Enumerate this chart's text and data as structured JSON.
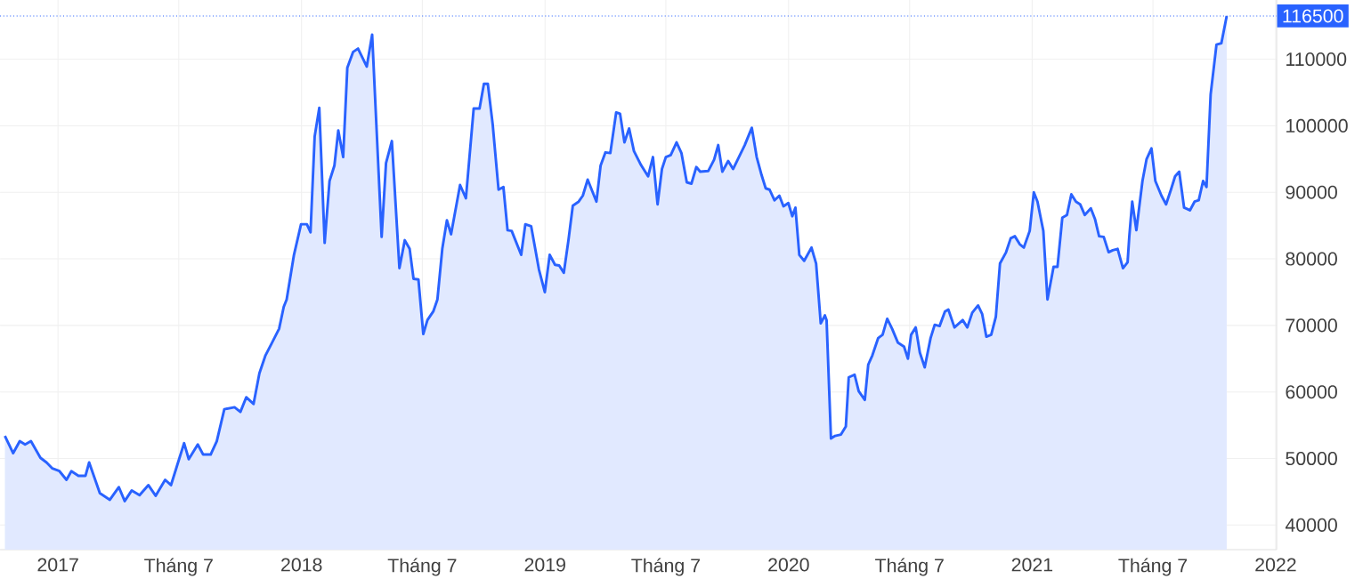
{
  "chart_data": {
    "type": "area",
    "color": "#2962ff",
    "grid": true,
    "xlim": [
      2016.762,
      2022.004
    ],
    "ylim": [
      36300,
      118900
    ],
    "xticks": [
      {
        "value": 2017,
        "label": "2017"
      },
      {
        "value": 2017.496,
        "label": "Tháng 7"
      },
      {
        "value": 2018,
        "label": "2018"
      },
      {
        "value": 2018.496,
        "label": "Tháng 7"
      },
      {
        "value": 2019,
        "label": "2019"
      },
      {
        "value": 2019.496,
        "label": "Tháng 7"
      },
      {
        "value": 2020,
        "label": "2020"
      },
      {
        "value": 2020.497,
        "label": "Tháng 7"
      },
      {
        "value": 2021,
        "label": "2021"
      },
      {
        "value": 2021.496,
        "label": "Tháng 7"
      },
      {
        "value": 2022,
        "label": "2022"
      }
    ],
    "yticks": [
      40000,
      50000,
      60000,
      70000,
      80000,
      90000,
      100000,
      110000
    ],
    "ref_lines": [
      {
        "axis": "y",
        "value": 116500,
        "label": "116500",
        "line_style": "dotted",
        "color": "#2962ff"
      }
    ],
    "x": [
      2016.782,
      2016.816,
      2016.843,
      2016.865,
      2016.889,
      2016.928,
      2016.953,
      2016.977,
      2017.006,
      2017.035,
      2017.055,
      2017.084,
      2017.113,
      2017.128,
      2017.172,
      2017.213,
      2017.25,
      2017.274,
      2017.303,
      2017.335,
      2017.371,
      2017.401,
      2017.44,
      2017.464,
      2017.499,
      2017.518,
      2017.537,
      2017.574,
      2017.596,
      2017.627,
      2017.652,
      2017.683,
      2017.725,
      2017.749,
      2017.773,
      2017.803,
      2017.827,
      2017.852,
      2017.876,
      2017.908,
      2017.927,
      2017.939,
      2017.969,
      2017.998,
      2018.022,
      2018.037,
      2018.054,
      2018.073,
      2018.095,
      2018.115,
      2018.135,
      2018.151,
      2018.171,
      2018.188,
      2018.212,
      2018.232,
      2018.268,
      2018.29,
      2018.329,
      2018.347,
      2018.371,
      2018.402,
      2018.424,
      2018.444,
      2018.46,
      2018.48,
      2018.5,
      2018.517,
      2018.541,
      2018.558,
      2018.578,
      2018.597,
      2018.614,
      2018.634,
      2018.651,
      2018.675,
      2018.707,
      2018.731,
      2018.749,
      2018.765,
      2018.785,
      2018.809,
      2018.829,
      2018.846,
      2018.863,
      2018.902,
      2018.919,
      2018.943,
      2018.975,
      2018.999,
      2019.019,
      2019.041,
      2019.058,
      2019.077,
      2019.096,
      2019.114,
      2019.138,
      2019.155,
      2019.175,
      2019.211,
      2019.228,
      2019.248,
      2019.268,
      2019.292,
      2019.308,
      2019.326,
      2019.345,
      2019.365,
      2019.394,
      2019.423,
      2019.443,
      2019.462,
      2019.48,
      2019.496,
      2019.516,
      2019.54,
      2019.56,
      2019.582,
      2019.601,
      2019.621,
      2019.637,
      2019.67,
      2019.694,
      2019.711,
      2019.728,
      2019.752,
      2019.772,
      2019.796,
      2019.82,
      2019.849,
      2019.869,
      2019.889,
      2019.906,
      2019.922,
      2019.942,
      2019.962,
      2019.979,
      2019.999,
      2020.015,
      2020.028,
      2020.044,
      2020.064,
      2020.094,
      2020.113,
      2020.132,
      2020.149,
      2020.156,
      2020.174,
      2020.191,
      2020.215,
      2020.235,
      2020.247,
      2020.271,
      2020.288,
      2020.313,
      2020.327,
      2020.344,
      2020.368,
      2020.386,
      2020.405,
      2020.425,
      2020.449,
      2020.474,
      2020.49,
      2020.503,
      2020.522,
      2020.539,
      2020.559,
      2020.583,
      2020.6,
      2020.62,
      2020.642,
      2020.656,
      2020.681,
      2020.715,
      2020.734,
      2020.754,
      2020.778,
      2020.795,
      2020.812,
      2020.832,
      2020.851,
      2020.868,
      2020.893,
      2020.912,
      2020.929,
      2020.949,
      2020.966,
      2020.99,
      2021.007,
      2021.022,
      2021.046,
      2021.063,
      2021.088,
      2021.104,
      2021.124,
      2021.143,
      2021.161,
      2021.18,
      2021.197,
      2021.216,
      2021.241,
      2021.258,
      2021.275,
      2021.294,
      2021.314,
      2021.331,
      2021.351,
      2021.373,
      2021.392,
      2021.399,
      2021.411,
      2021.428,
      2021.453,
      2021.47,
      2021.49,
      2021.506,
      2021.531,
      2021.55,
      2021.57,
      2021.587,
      2021.604,
      2021.624,
      2021.648,
      2021.667,
      2021.684,
      2021.702,
      2021.716,
      2021.733,
      2021.757,
      2021.777,
      2021.799
    ],
    "values": [
      53400,
      50800,
      52600,
      52100,
      52600,
      50100,
      49400,
      48500,
      48100,
      46800,
      48100,
      47400,
      47400,
      49400,
      44800,
      43800,
      45700,
      43600,
      45200,
      44500,
      46000,
      44400,
      46800,
      46000,
      50100,
      52300,
      49900,
      52100,
      50600,
      50600,
      52600,
      57400,
      57700,
      57000,
      59200,
      58200,
      62800,
      65500,
      67200,
      69500,
      72800,
      73900,
      80600,
      85200,
      85200,
      84000,
      98400,
      102700,
      82400,
      91700,
      94000,
      99300,
      95300,
      108700,
      111100,
      111600,
      108900,
      113700,
      83300,
      94400,
      97700,
      78600,
      82800,
      81500,
      77000,
      76900,
      68700,
      70800,
      72100,
      73900,
      81500,
      85800,
      83700,
      87700,
      91100,
      89100,
      102600,
      102600,
      106300,
      106300,
      100200,
      90400,
      90800,
      84300,
      84200,
      80600,
      85200,
      84900,
      78400,
      75000,
      80600,
      79100,
      79000,
      77900,
      82800,
      88000,
      88600,
      89500,
      91900,
      88600,
      94000,
      96000,
      95900,
      102000,
      101800,
      97500,
      99600,
      96200,
      94100,
      92400,
      95300,
      88200,
      93500,
      95300,
      95600,
      97500,
      95900,
      91500,
      91300,
      93800,
      93100,
      93200,
      94900,
      97100,
      93100,
      94700,
      93500,
      95300,
      97100,
      99700,
      95300,
      92600,
      90600,
      90400,
      88800,
      89500,
      87900,
      88400,
      86400,
      87700,
      80600,
      79700,
      81700,
      79300,
      70300,
      71500,
      70800,
      53000,
      53400,
      53600,
      54800,
      62200,
      62600,
      60100,
      58800,
      64100,
      65500,
      68100,
      68600,
      71000,
      69500,
      67400,
      66800,
      65000,
      68600,
      69700,
      65900,
      63700,
      68100,
      70100,
      69900,
      72100,
      72400,
      69700,
      70800,
      69700,
      71900,
      73000,
      71700,
      68300,
      68600,
      71300,
      79300,
      81000,
      83100,
      83400,
      82200,
      81700,
      84200,
      90000,
      88600,
      84200,
      73900,
      78800,
      78800,
      86200,
      86600,
      89700,
      88600,
      88200,
      86600,
      87600,
      86000,
      83400,
      83300,
      81000,
      81300,
      81500,
      78600,
      79500,
      83400,
      88600,
      84300,
      91700,
      95000,
      96600,
      91700,
      89500,
      88200,
      90400,
      92400,
      93100,
      87700,
      87300,
      88600,
      88800,
      91700,
      90800,
      104700,
      112200,
      112400,
      116500
    ]
  }
}
